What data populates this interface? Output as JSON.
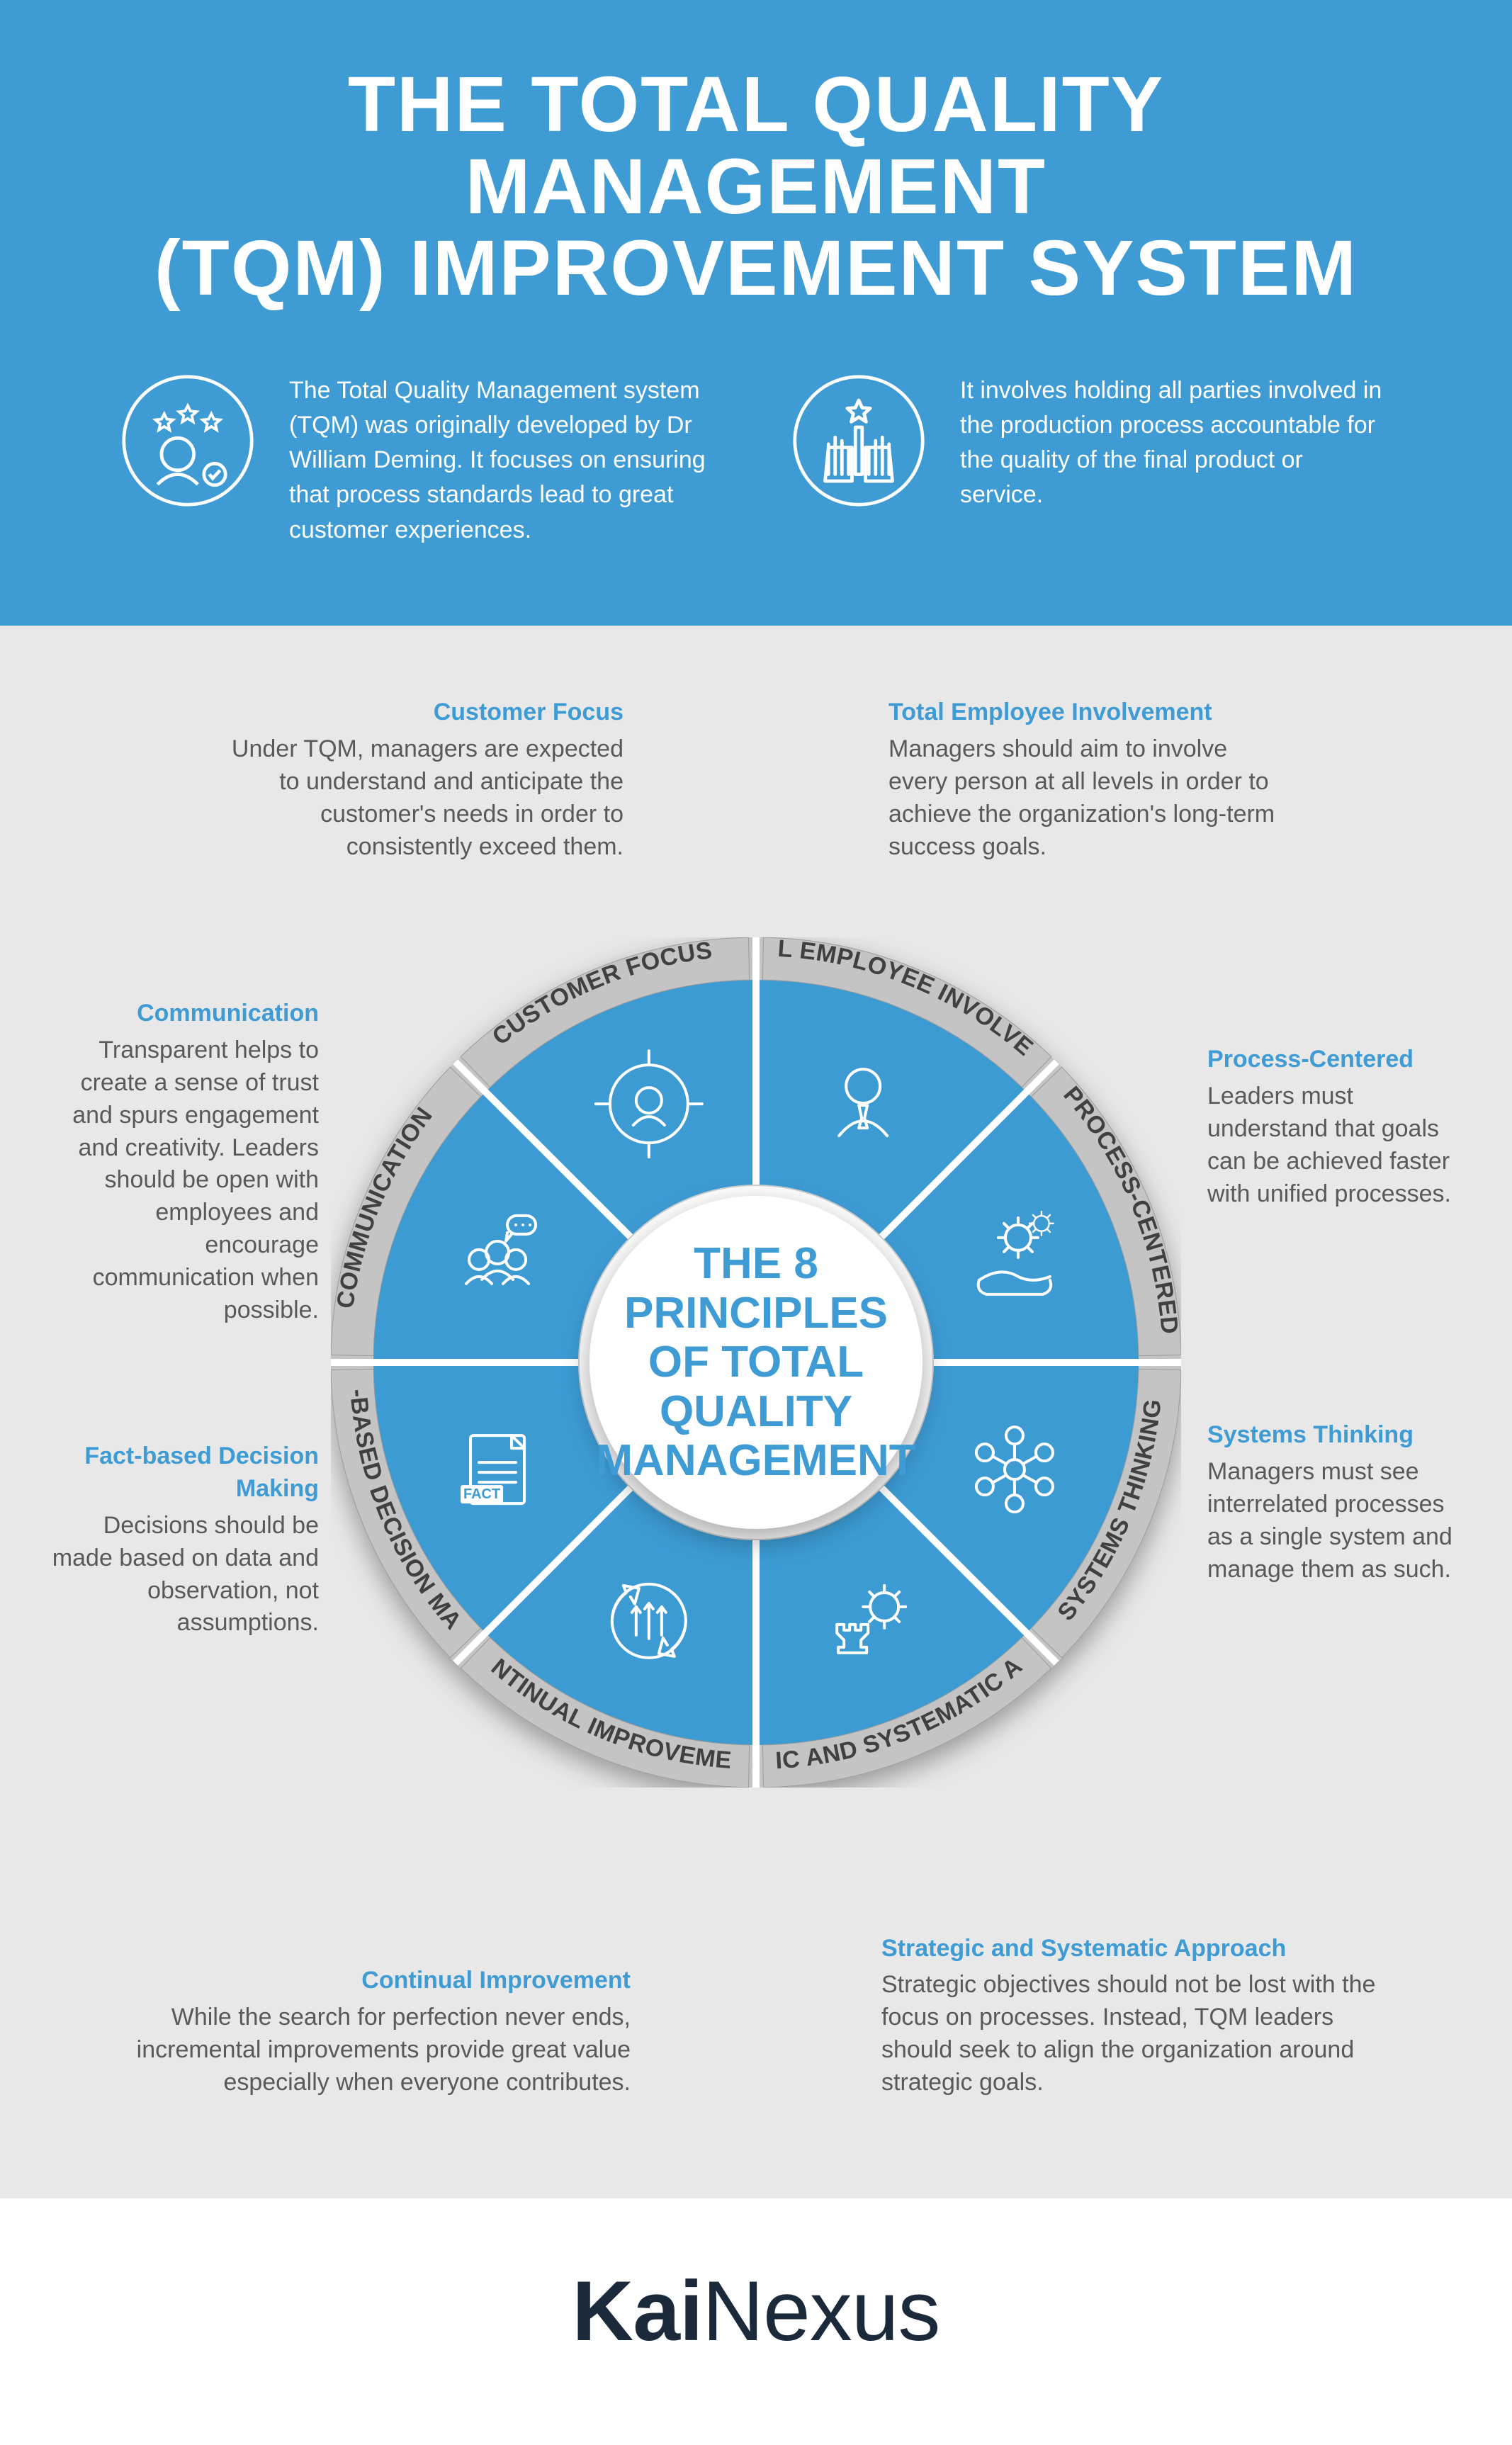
{
  "title_line1": "THE TOTAL QUALITY MANAGEMENT",
  "title_line2": "(TQM) IMPROVEMENT SYSTEM",
  "intro": [
    {
      "text": "The Total Quality Management system (TQM) was originally developed by Dr William Deming. It focuses on ensuring that process standards lead to great customer experiences."
    },
    {
      "text": "It involves holding all parties involved in the production process accountable for the quality of the final product or service."
    }
  ],
  "hub_text": "THE 8 PRINCIPLES OF TOTAL QUALITY MANAGEMENT",
  "colors": {
    "header_bg": "#3e9bd4",
    "main_bg": "#e8e8e8",
    "segment_fill": "#3e9bd4",
    "segment_divider": "#ffffff",
    "ring_bg": "#c4c4c4",
    "ring_text": "#414042",
    "body_text": "#58595b",
    "accent_text": "#3e9bd4",
    "hub_bg": "#ffffff",
    "icon_stroke": "#ffffff",
    "brand_text": "#1a2a3a"
  },
  "wheel": {
    "type": "radial-segmented",
    "segments": 8,
    "outer_r": 540,
    "inner_r": 250,
    "ring_inner_r": 540,
    "ring_outer_r": 600,
    "divider_width": 10,
    "label_fontsize": 34,
    "hub_fontsize": 62,
    "icon_stroke_width": 4
  },
  "segments": [
    {
      "ring_label": "CUSTOMER FOCUS",
      "ann_title": "Customer Focus",
      "ann_body": "Under TQM, managers are expected to understand and anticipate the customer's needs in order to consistently exceed them.",
      "icon": "target-user"
    },
    {
      "ring_label": "TOTAL EMPLOYEE INVOLVEMENT",
      "ann_title": "Total Employee Involvement",
      "ann_body": "Managers should aim to involve every person at all levels in order to achieve the organization's long-term success goals.",
      "icon": "person-tie"
    },
    {
      "ring_label": "PROCESS-CENTERED",
      "ann_title": "Process-Centered",
      "ann_body": "Leaders must understand that goals can be achieved faster with unified processes.",
      "icon": "hand-gears"
    },
    {
      "ring_label": "SYSTEMS THINKING",
      "ann_title": "Systems Thinking",
      "ann_body": "Managers must see interrelated processes as a single system and manage them as such.",
      "icon": "network-nodes"
    },
    {
      "ring_label": "STRATEGIC AND SYSTEMATIC APPROACH",
      "ann_title": "Strategic and Systematic Approach",
      "ann_body": "Strategic objectives should not be lost with the focus on processes. Instead, TQM leaders should seek to align the organization around strategic goals.",
      "icon": "chess-gear"
    },
    {
      "ring_label": "CONTINUAL IMPROVEMENT",
      "ann_title": "Continual Improvement",
      "ann_body": "While the search for perfection never ends, incremental improvements provide great value especially when everyone contributes.",
      "icon": "cycle-arrows-up"
    },
    {
      "ring_label": "FACT-BASED DECISION MAKING",
      "ann_title": "Fact-based Decision Making",
      "ann_body": "Decisions should be made based on data and observation, not assumptions.",
      "icon": "fact-sheet"
    },
    {
      "ring_label": "COMMUNICATION",
      "ann_title": "Communication",
      "ann_body": "Transparent helps to create a sense of trust and spurs engagement and creativity. Leaders should be open with employees and encourage communication when possible.",
      "icon": "people-speech"
    }
  ],
  "brand_part1": "Kai",
  "brand_part2": "Nexus"
}
